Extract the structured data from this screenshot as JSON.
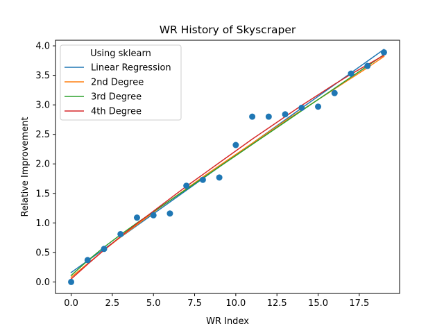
{
  "chart_data": {
    "type": "line",
    "title": "WR History of Skyscraper",
    "xlabel": "WR Index",
    "ylabel": "Relative Improvement",
    "xlim": [
      -0.95,
      19.95
    ],
    "ylim": [
      -0.195,
      4.095
    ],
    "xticks": [
      0,
      2.5,
      5,
      7.5,
      10,
      12.5,
      15,
      17.5
    ],
    "xtick_labels": [
      "0.0",
      "2.5",
      "5.0",
      "7.5",
      "10.0",
      "12.5",
      "15.0",
      "17.5"
    ],
    "yticks": [
      0,
      0.5,
      1,
      1.5,
      2,
      2.5,
      3,
      3.5,
      4
    ],
    "ytick_labels": [
      "0.0",
      "0.5",
      "1.0",
      "1.5",
      "2.0",
      "2.5",
      "3.0",
      "3.5",
      "4.0"
    ],
    "grid": false,
    "legend": {
      "title": "Using sklearn",
      "placement": "upper-left"
    },
    "scatter": {
      "color": "#1f77b4",
      "x": [
        0,
        1,
        2,
        3,
        4,
        5,
        6,
        7,
        8,
        9,
        10,
        11,
        12,
        13,
        14,
        15,
        16,
        17,
        18,
        19
      ],
      "y": [
        0.0,
        0.37,
        0.56,
        0.81,
        1.09,
        1.13,
        1.16,
        1.63,
        1.73,
        1.77,
        2.32,
        2.8,
        2.8,
        2.84,
        2.95,
        2.97,
        3.2,
        3.53,
        3.66,
        3.89
      ]
    },
    "series": [
      {
        "name": "Linear Regression",
        "color": "#1f77b4",
        "x": [
          0,
          19
        ],
        "y": [
          0.16,
          3.94
        ]
      },
      {
        "name": "2nd Degree",
        "color": "#ff7f0e",
        "x": [
          0,
          1,
          2,
          3,
          4,
          5,
          6,
          7,
          8,
          9,
          10,
          11,
          12,
          13,
          14,
          15,
          16,
          17,
          18,
          19
        ],
        "y": [
          0.08,
          0.31,
          0.54,
          0.76,
          0.97,
          1.18,
          1.38,
          1.58,
          1.78,
          1.97,
          2.16,
          2.35,
          2.54,
          2.73,
          2.91,
          3.09,
          3.27,
          3.45,
          3.63,
          3.82
        ]
      },
      {
        "name": "3rd Degree",
        "color": "#2ca02c",
        "x": [
          0,
          1,
          2,
          3,
          4,
          5,
          6,
          7,
          8,
          9,
          10,
          11,
          12,
          13,
          14,
          15,
          16,
          17,
          18,
          19
        ],
        "y": [
          0.11,
          0.36,
          0.59,
          0.8,
          1.0,
          1.19,
          1.38,
          1.57,
          1.76,
          1.95,
          2.14,
          2.33,
          2.52,
          2.71,
          2.9,
          3.09,
          3.28,
          3.47,
          3.66,
          3.85
        ]
      },
      {
        "name": "4th Degree",
        "color": "#d62728",
        "x": [
          0,
          1,
          2,
          3,
          4,
          5,
          6,
          7,
          8,
          9,
          10,
          11,
          12,
          13,
          14,
          15,
          16,
          17,
          18,
          19
        ],
        "y": [
          0.05,
          0.3,
          0.54,
          0.77,
          0.99,
          1.2,
          1.41,
          1.62,
          1.82,
          2.02,
          2.22,
          2.42,
          2.61,
          2.8,
          2.99,
          3.17,
          3.35,
          3.52,
          3.68,
          3.84
        ]
      }
    ]
  }
}
